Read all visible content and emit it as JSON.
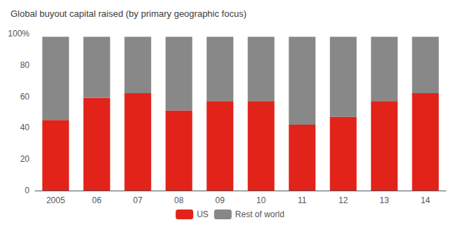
{
  "chart_data": {
    "type": "bar",
    "title": "Global buyout capital raised (by primary geographic focus)",
    "categories": [
      "2005",
      "06",
      "07",
      "08",
      "09",
      "10",
      "11",
      "12",
      "13",
      "14"
    ],
    "series": [
      {
        "name": "US",
        "color": "#e2231a",
        "values": [
          45,
          59,
          62,
          51,
          57,
          57,
          42,
          47,
          57,
          62
        ]
      },
      {
        "name": "Rest of world",
        "color": "#888888",
        "values": [
          53,
          39,
          36,
          47,
          41,
          41,
          56,
          51,
          41,
          36
        ]
      }
    ],
    "stacked": true,
    "ylim": [
      0,
      100
    ],
    "yticks": [
      0,
      20,
      40,
      60,
      80,
      {
        "value": 100,
        "label": "100%"
      }
    ],
    "grid": false,
    "legend": "bottom"
  }
}
